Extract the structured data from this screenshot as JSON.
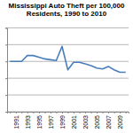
{
  "chart_data": {
    "type": "line",
    "title": "Mississippi Auto Theft per 100,000 Residents, 1990 to 2010",
    "categories": [
      null,
      "1991",
      null,
      "1993",
      null,
      "1995",
      null,
      "1997",
      null,
      "1999",
      null,
      "2001",
      null,
      "2003",
      null,
      "2005",
      null,
      "2007",
      null,
      "2009",
      null
    ],
    "values": [
      300,
      300,
      300,
      335,
      335,
      325,
      315,
      310,
      305,
      390,
      250,
      295,
      295,
      285,
      275,
      260,
      255,
      270,
      250,
      235,
      235
    ],
    "color": "#4a7ebb",
    "ylim": [
      0,
      500
    ],
    "yticks": [
      0,
      100,
      200,
      300,
      400,
      500
    ],
    "grid": true,
    "tick_labels": "x"
  }
}
